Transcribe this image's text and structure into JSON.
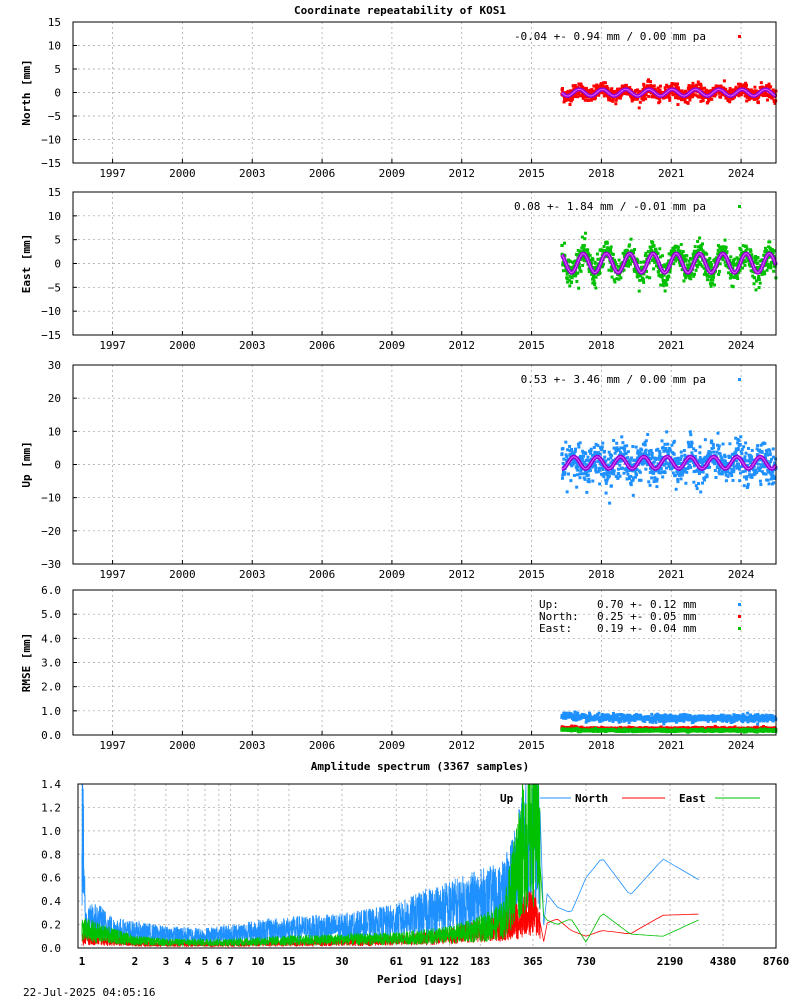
{
  "footer_timestamp": "22-Jul-2025 04:05:16",
  "colors": {
    "north": "#ff0000",
    "east": "#00c000",
    "up": "#1e90ff",
    "model": "#9400d3",
    "model_core": "#e060ff"
  },
  "chart_data": [
    {
      "id": "north",
      "type": "scatter",
      "title": "Coordinate repeatability of KOS1",
      "ylabel": "North [mm]",
      "xlabel": "",
      "xlim": [
        1995.3,
        2025.5
      ],
      "ylim": [
        -15,
        15
      ],
      "x_ticks": [
        "1997",
        "2000",
        "2003",
        "2006",
        "2009",
        "2012",
        "2015",
        "2018",
        "2021",
        "2024"
      ],
      "y_ticks": [
        "15",
        "10",
        "5",
        "0",
        "−5",
        "−10",
        "−15"
      ],
      "y_tick_values": [
        15,
        10,
        5,
        0,
        -5,
        -10,
        -15
      ],
      "grid": true,
      "legend": {
        "text": "-0.04 +- 0.94 mm /  0.00 mm pa",
        "position": "top-right",
        "color": "#ff0000"
      },
      "series": [
        {
          "name": "North",
          "color": "#ff0000",
          "x_range": [
            2016.3,
            2025.5
          ],
          "mean": -0.04,
          "scatter_sigma": 0.94,
          "rate_mm_per_year": 0.0,
          "seasonal_amplitude_mm": 0.7,
          "approx_points": [
            [
              2016.4,
              -0.5
            ],
            [
              2016.8,
              -1.2
            ],
            [
              2017.3,
              0.6
            ],
            [
              2017.8,
              -0.9
            ],
            [
              2018.3,
              0.8
            ],
            [
              2018.8,
              -0.7
            ],
            [
              2019.3,
              0.7
            ],
            [
              2019.8,
              -0.8
            ],
            [
              2020.3,
              0.6
            ],
            [
              2020.8,
              -0.9
            ],
            [
              2021.3,
              0.7
            ],
            [
              2021.8,
              -0.8
            ],
            [
              2022.3,
              0.8
            ],
            [
              2022.8,
              -0.6
            ],
            [
              2023.3,
              0.7
            ],
            [
              2023.8,
              -0.9
            ],
            [
              2024.3,
              0.6
            ],
            [
              2024.8,
              -0.7
            ],
            [
              2025.3,
              0.5
            ]
          ]
        }
      ]
    },
    {
      "id": "east",
      "type": "scatter",
      "title": "",
      "ylabel": "East [mm]",
      "xlim": [
        1995.3,
        2025.5
      ],
      "ylim": [
        -15,
        15
      ],
      "x_ticks": [
        "1997",
        "2000",
        "2003",
        "2006",
        "2009",
        "2012",
        "2015",
        "2018",
        "2021",
        "2024"
      ],
      "y_ticks": [
        "15",
        "10",
        "5",
        "0",
        "−5",
        "−10",
        "−15"
      ],
      "y_tick_values": [
        15,
        10,
        5,
        0,
        -5,
        -10,
        -15
      ],
      "grid": true,
      "legend": {
        "text": "0.08 +- 1.84 mm / -0.01 mm pa",
        "position": "top-right",
        "color": "#00c000"
      },
      "series": [
        {
          "name": "East",
          "color": "#00c000",
          "x_range": [
            2016.3,
            2025.5
          ],
          "mean": 0.08,
          "scatter_sigma": 1.84,
          "rate_mm_per_year": -0.01,
          "seasonal_amplitude_mm": 2.0,
          "approx_points": [
            [
              2016.4,
              2.0
            ],
            [
              2016.9,
              -2.2
            ],
            [
              2017.4,
              2.1
            ],
            [
              2017.9,
              -2.4
            ],
            [
              2018.4,
              2.0
            ],
            [
              2018.9,
              -2.3
            ],
            [
              2019.4,
              2.1
            ],
            [
              2019.9,
              -2.2
            ],
            [
              2020.4,
              2.0
            ],
            [
              2020.9,
              -2.4
            ],
            [
              2021.4,
              2.1
            ],
            [
              2021.9,
              -2.2
            ],
            [
              2022.4,
              2.0
            ],
            [
              2022.9,
              -2.3
            ],
            [
              2023.4,
              2.1
            ],
            [
              2023.9,
              -2.2
            ],
            [
              2024.4,
              2.2
            ],
            [
              2024.9,
              -2.5
            ],
            [
              2025.4,
              2.0
            ]
          ]
        }
      ]
    },
    {
      "id": "up",
      "type": "scatter",
      "title": "",
      "ylabel": "Up [mm]",
      "xlim": [
        1995.3,
        2025.5
      ],
      "ylim": [
        -30,
        30
      ],
      "x_ticks": [
        "1997",
        "2000",
        "2003",
        "2006",
        "2009",
        "2012",
        "2015",
        "2018",
        "2021",
        "2024"
      ],
      "y_ticks": [
        "30",
        "20",
        "10",
        "0",
        "−10",
        "−20",
        "−30"
      ],
      "y_tick_values": [
        30,
        20,
        10,
        0,
        -10,
        -20,
        -30
      ],
      "grid": true,
      "legend": {
        "text": "0.53 +- 3.46 mm /  0.00 mm pa",
        "position": "top-right",
        "color": "#1e90ff"
      },
      "series": [
        {
          "name": "Up",
          "color": "#1e90ff",
          "x_range": [
            2016.3,
            2025.5
          ],
          "mean": 0.53,
          "scatter_sigma": 3.46,
          "rate_mm_per_year": 0.0,
          "seasonal_amplitude_mm": 1.8,
          "approx_points": [
            [
              2016.4,
              -1.5
            ],
            [
              2016.9,
              1.8
            ],
            [
              2017.4,
              -1.7
            ],
            [
              2017.9,
              2.0
            ],
            [
              2018.4,
              -1.6
            ],
            [
              2018.9,
              1.9
            ],
            [
              2019.4,
              -1.8
            ],
            [
              2019.9,
              1.7
            ],
            [
              2020.4,
              -1.6
            ],
            [
              2020.9,
              1.9
            ],
            [
              2021.4,
              -1.7
            ],
            [
              2021.9,
              1.8
            ],
            [
              2022.4,
              -1.6
            ],
            [
              2022.9,
              1.9
            ],
            [
              2023.4,
              -1.8
            ],
            [
              2023.9,
              1.7
            ],
            [
              2024.4,
              -1.6
            ],
            [
              2024.9,
              1.9
            ],
            [
              2025.4,
              1.5
            ]
          ]
        }
      ]
    },
    {
      "id": "rmse",
      "type": "scatter",
      "title": "",
      "ylabel": "RMSE [mm]",
      "xlim": [
        1995.3,
        2025.5
      ],
      "ylim": [
        0,
        6
      ],
      "x_ticks": [
        "1997",
        "2000",
        "2003",
        "2006",
        "2009",
        "2012",
        "2015",
        "2018",
        "2021",
        "2024"
      ],
      "y_ticks": [
        "6.0",
        "5.0",
        "4.0",
        "3.0",
        "2.0",
        "1.0",
        "0.0"
      ],
      "y_tick_values": [
        6,
        5,
        4,
        3,
        2,
        1,
        0
      ],
      "grid": true,
      "legend_rows": [
        {
          "label": "Up:",
          "value": "0.70 +- 0.12 mm",
          "color": "#1e90ff"
        },
        {
          "label": "North:",
          "value": "0.25 +- 0.05 mm",
          "color": "#ff0000"
        },
        {
          "label": "East:",
          "value": "0.19 +- 0.04 mm",
          "color": "#00c000"
        }
      ],
      "series": [
        {
          "name": "Up",
          "color": "#1e90ff",
          "x_range": [
            2016.3,
            2025.5
          ],
          "mean": 0.7,
          "sigma": 0.12
        },
        {
          "name": "North",
          "color": "#ff0000",
          "x_range": [
            2016.3,
            2025.5
          ],
          "mean": 0.25,
          "sigma": 0.05
        },
        {
          "name": "East",
          "color": "#00c000",
          "x_range": [
            2016.3,
            2025.5
          ],
          "mean": 0.19,
          "sigma": 0.04
        }
      ]
    },
    {
      "id": "spectrum",
      "type": "line",
      "title": "Amplitude spectrum (3367 samples)",
      "xlabel": "Period [days]",
      "ylabel": "",
      "x_scale": "log",
      "xlim": [
        0.95,
        8760
      ],
      "ylim": [
        0,
        1.4
      ],
      "x_ticks": [
        "1",
        "2",
        "3",
        "4",
        "5",
        "6",
        "7",
        "10",
        "15",
        "30",
        "61",
        "91",
        "122",
        "183",
        "365",
        "730",
        "2190",
        "4380",
        "8760"
      ],
      "x_tick_values": [
        1,
        2,
        3,
        4,
        5,
        6,
        7,
        10,
        15,
        30,
        61,
        91,
        122,
        183,
        365,
        730,
        2190,
        4380,
        8760
      ],
      "y_ticks": [
        "1.4",
        "1.2",
        "1.0",
        "0.8",
        "0.6",
        "0.4",
        "0.2",
        "0.0"
      ],
      "y_tick_values": [
        1.4,
        1.2,
        1.0,
        0.8,
        0.6,
        0.4,
        0.2,
        0.0
      ],
      "grid": true,
      "legend": [
        {
          "name": "Up",
          "color": "#1e90ff"
        },
        {
          "name": "North",
          "color": "#ff0000"
        },
        {
          "name": "East",
          "color": "#00c000"
        }
      ],
      "legend_position": "top-right",
      "series": [
        {
          "name": "Up",
          "color": "#1e90ff",
          "points": [
            [
              1,
              1.4
            ],
            [
              1.05,
              0.25
            ],
            [
              1.2,
              0.3
            ],
            [
              1.5,
              0.2
            ],
            [
              2,
              0.17
            ],
            [
              3,
              0.14
            ],
            [
              5,
              0.13
            ],
            [
              7,
              0.15
            ],
            [
              10,
              0.18
            ],
            [
              15,
              0.2
            ],
            [
              30,
              0.22
            ],
            [
              61,
              0.28
            ],
            [
              91,
              0.38
            ],
            [
              122,
              0.43
            ],
            [
              183,
              0.5
            ],
            [
              250,
              0.55
            ],
            [
              300,
              0.85
            ],
            [
              340,
              1.2
            ],
            [
              365,
              1.4
            ],
            [
              390,
              1.3
            ],
            [
              420,
              0.5
            ],
            [
              500,
              0.35
            ],
            [
              600,
              0.3
            ],
            [
              730,
              0.6
            ],
            [
              900,
              0.77
            ],
            [
              1300,
              0.45
            ],
            [
              2000,
              0.76
            ],
            [
              3300,
              0.57
            ]
          ]
        },
        {
          "name": "North",
          "color": "#ff0000",
          "points": [
            [
              1,
              0.1
            ],
            [
              2,
              0.05
            ],
            [
              3,
              0.04
            ],
            [
              5,
              0.04
            ],
            [
              7,
              0.04
            ],
            [
              10,
              0.05
            ],
            [
              15,
              0.05
            ],
            [
              30,
              0.06
            ],
            [
              61,
              0.08
            ],
            [
              91,
              0.1
            ],
            [
              122,
              0.12
            ],
            [
              183,
              0.18
            ],
            [
              250,
              0.22
            ],
            [
              300,
              0.3
            ],
            [
              365,
              0.39
            ],
            [
              420,
              0.2
            ],
            [
              500,
              0.25
            ],
            [
              600,
              0.15
            ],
            [
              730,
              0.1
            ],
            [
              900,
              0.15
            ],
            [
              1300,
              0.12
            ],
            [
              2000,
              0.28
            ],
            [
              3300,
              0.29
            ]
          ]
        },
        {
          "name": "East",
          "color": "#00c000",
          "points": [
            [
              1,
              0.2
            ],
            [
              2,
              0.08
            ],
            [
              3,
              0.06
            ],
            [
              5,
              0.06
            ],
            [
              7,
              0.06
            ],
            [
              10,
              0.07
            ],
            [
              15,
              0.08
            ],
            [
              30,
              0.09
            ],
            [
              61,
              0.1
            ],
            [
              91,
              0.12
            ],
            [
              122,
              0.14
            ],
            [
              183,
              0.2
            ],
            [
              250,
              0.3
            ],
            [
              300,
              0.9
            ],
            [
              340,
              1.25
            ],
            [
              365,
              1.4
            ],
            [
              390,
              1.3
            ],
            [
              420,
              0.25
            ],
            [
              500,
              0.2
            ],
            [
              600,
              0.25
            ],
            [
              730,
              0.05
            ],
            [
              900,
              0.3
            ],
            [
              1300,
              0.12
            ],
            [
              2000,
              0.1
            ],
            [
              3300,
              0.25
            ]
          ]
        }
      ]
    }
  ]
}
